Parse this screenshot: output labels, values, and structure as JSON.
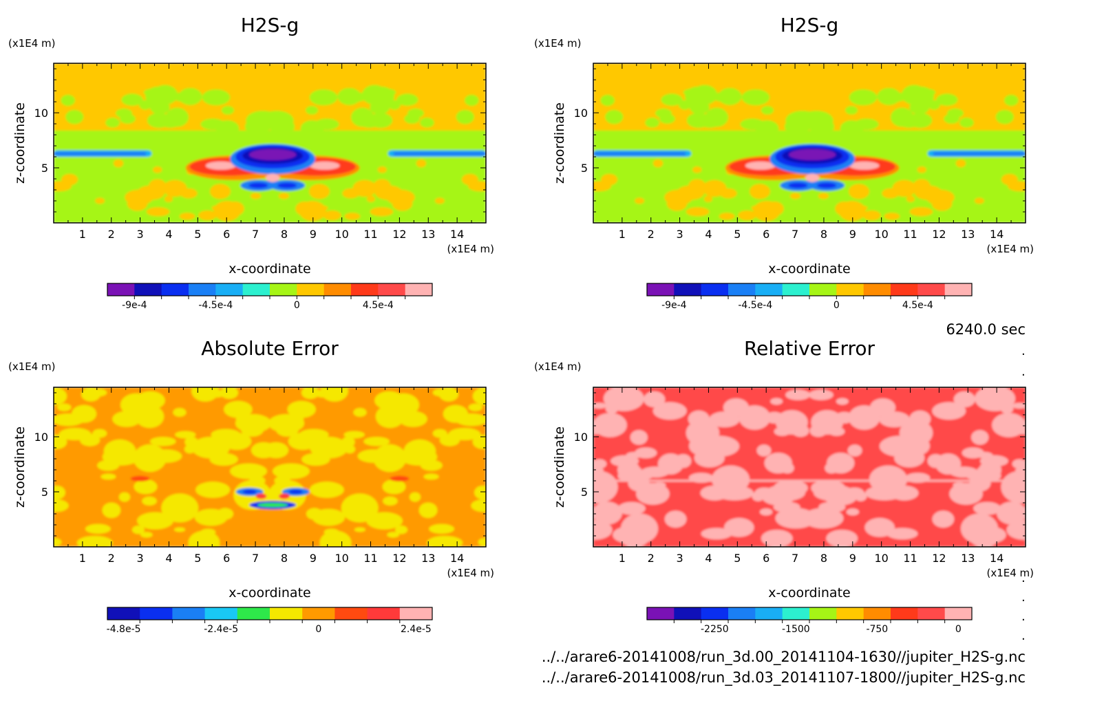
{
  "panels": [
    {
      "title": "H2S-g",
      "xlabel": "x-coordinate",
      "ylabel": "z-coordinate",
      "x_unit": "(x1E4 m)",
      "z_unit": "(x1E4 m)",
      "x_ticks": [
        "1",
        "2",
        "3",
        "4",
        "5",
        "6",
        "7",
        "8",
        "9",
        "10",
        "11",
        "12",
        "13",
        "14"
      ],
      "z_ticks": [
        "5",
        "10"
      ],
      "colorbar": {
        "colors": [
          "#7a12b5",
          "#1010b8",
          "#0a2ff0",
          "#1a7ff5",
          "#19aef5",
          "#2cf0cf",
          "#a6f516",
          "#ffc800",
          "#ff8c00",
          "#ff3a1a",
          "#ff4a4a",
          "#ffb3b3"
        ],
        "labels": [
          "-9e-4",
          "-4.5e-4",
          "0",
          "4.5e-4"
        ]
      }
    },
    {
      "title": "H2S-g",
      "xlabel": "x-coordinate",
      "ylabel": "z-coordinate",
      "x_unit": "(x1E4 m)",
      "z_unit": "(x1E4 m)",
      "x_ticks": [
        "1",
        "2",
        "3",
        "4",
        "5",
        "6",
        "7",
        "8",
        "9",
        "10",
        "11",
        "12",
        "13",
        "14"
      ],
      "z_ticks": [
        "5",
        "10"
      ],
      "colorbar": {
        "colors": [
          "#7a12b5",
          "#1010b8",
          "#0a2ff0",
          "#1a7ff5",
          "#19aef5",
          "#2cf0cf",
          "#a6f516",
          "#ffc800",
          "#ff8c00",
          "#ff3a1a",
          "#ff4a4a",
          "#ffb3b3"
        ],
        "labels": [
          "-9e-4",
          "-4.5e-4",
          "0",
          "4.5e-4"
        ]
      }
    },
    {
      "title": "Absolute Error",
      "xlabel": "x-coordinate",
      "ylabel": "z-coordinate",
      "x_unit": "(x1E4 m)",
      "z_unit": "(x1E4 m)",
      "x_ticks": [
        "1",
        "2",
        "3",
        "4",
        "5",
        "6",
        "7",
        "8",
        "9",
        "10",
        "11",
        "12",
        "13",
        "14"
      ],
      "z_ticks": [
        "5",
        "10"
      ],
      "colorbar": {
        "colors": [
          "#1010b8",
          "#0a2ff0",
          "#1a7ff5",
          "#19c8f5",
          "#2ee84a",
          "#f5e800",
          "#ff9a00",
          "#ff4a10",
          "#ff3a3a",
          "#ffb3b3"
        ],
        "labels": [
          "-4.8e-5",
          "-2.4e-5",
          "0",
          "2.4e-5"
        ]
      }
    },
    {
      "title": "Relative Error",
      "xlabel": "x-coordinate",
      "ylabel": "z-coordinate",
      "x_unit": "(x1E4 m)",
      "z_unit": "(x1E4 m)",
      "x_ticks": [
        "1",
        "2",
        "3",
        "4",
        "5",
        "6",
        "7",
        "8",
        "9",
        "10",
        "11",
        "12",
        "13",
        "14"
      ],
      "z_ticks": [
        "5",
        "10"
      ],
      "colorbar": {
        "colors": [
          "#7a12b5",
          "#1010b8",
          "#0a2ff0",
          "#1a7ff5",
          "#19aef5",
          "#2cf0cf",
          "#a6f516",
          "#ffc800",
          "#ff8c00",
          "#ff3a1a",
          "#ff4a4a",
          "#ffb3b3"
        ],
        "labels": [
          "-2250",
          "-1500",
          "-750",
          "0"
        ]
      }
    }
  ],
  "time_label": "6240.0 sec",
  "file_paths": [
    "../../arare6-20141008/run_3d.00_20141104-1630//jupiter_H2S-g.nc",
    "../../arare6-20141008/run_3d.03_20141107-1800//jupiter_H2S-g.nc"
  ],
  "chart_data": [
    {
      "type": "heatmap",
      "title": "H2S-g",
      "xlabel": "x-coordinate",
      "ylabel": "z-coordinate",
      "xlim": [
        0,
        15
      ],
      "ylim": [
        0,
        14.5
      ],
      "colorbar_ticks": [
        -0.0009,
        -0.00045,
        0,
        0.00045
      ],
      "features": {
        "background_top": 0.0001,
        "background_mid": 0,
        "blue_band_z": 6.3,
        "minimum_center": [
          7.6,
          6
        ],
        "minimum_value": -0.0011,
        "red_lobes_z": 5,
        "red_lobes_x": [
          6.4,
          9.6
        ]
      }
    },
    {
      "type": "heatmap",
      "title": "H2S-g",
      "xlabel": "x-coordinate",
      "ylabel": "z-coordinate",
      "xlim": [
        0,
        15
      ],
      "ylim": [
        0,
        14.5
      ],
      "colorbar_ticks": [
        -0.0009,
        -0.00045,
        0,
        0.00045
      ],
      "features": {
        "background_top": 0.0001,
        "background_mid": 0,
        "blue_band_z": 6.3,
        "minimum_center": [
          7.6,
          6
        ],
        "minimum_value": -0.0011,
        "red_lobes_z": 5,
        "red_lobes_x": [
          6.4,
          9.6
        ]
      }
    },
    {
      "type": "heatmap",
      "title": "Absolute Error",
      "xlabel": "x-coordinate",
      "ylabel": "z-coordinate",
      "xlim": [
        0,
        15
      ],
      "ylim": [
        0,
        14.5
      ],
      "colorbar_ticks": [
        -4.8e-05,
        -2.4e-05,
        0,
        2.4e-05
      ],
      "features": {
        "background_range": [
          0,
          6e-06
        ],
        "anomaly_center": [
          7.6,
          4.5
        ],
        "anomaly_min": -4.2e-05
      }
    },
    {
      "type": "heatmap",
      "title": "Relative Error",
      "xlabel": "x-coordinate",
      "ylabel": "z-coordinate",
      "xlim": [
        0,
        15
      ],
      "ylim": [
        0,
        14.5
      ],
      "colorbar_ticks": [
        -2250,
        -1500,
        -750,
        0
      ],
      "features": {
        "background_range": [
          -200,
          0
        ]
      }
    }
  ]
}
